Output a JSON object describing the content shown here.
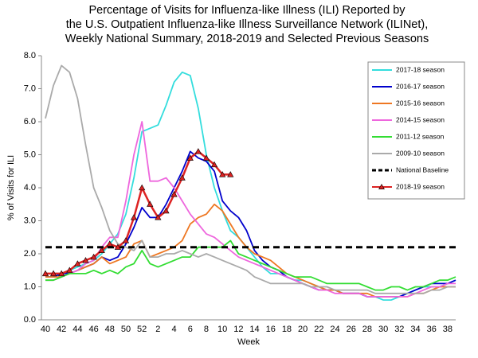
{
  "chart_data": {
    "type": "line",
    "title": [
      "Percentage of Visits for Influenza-like Illness (ILI) Reported by",
      "the U.S. Outpatient Influenza-like Illness Surveillance Network (ILINet),",
      "Weekly National Summary, 2018-2019 and Selected Previous Seasons"
    ],
    "x_label": "Week",
    "y_label": "% of Visits for ILI",
    "categories": [
      40,
      null,
      42,
      null,
      44,
      null,
      46,
      null,
      48,
      null,
      50,
      null,
      52,
      null,
      2,
      null,
      4,
      null,
      6,
      null,
      8,
      null,
      10,
      null,
      12,
      null,
      14,
      null,
      16,
      null,
      18,
      null,
      20,
      null,
      22,
      null,
      24,
      null,
      26,
      null,
      28,
      null,
      30,
      null,
      32,
      null,
      34,
      null,
      36,
      null,
      38,
      null
    ],
    "ylim": [
      0,
      8
    ],
    "yticks": [
      {
        "value": 0,
        "label": "0.0"
      },
      {
        "value": 1,
        "label": "1.0"
      },
      {
        "value": 2,
        "label": "2.0"
      },
      {
        "value": 3,
        "label": "3.0"
      },
      {
        "value": 4,
        "label": "4.0"
      },
      {
        "value": 5,
        "label": "5.0"
      },
      {
        "value": 6,
        "label": "6.0"
      },
      {
        "value": 7,
        "label": "7.0"
      },
      {
        "value": 8,
        "label": "8.0"
      }
    ],
    "legend": "top-right",
    "series": [
      {
        "name": "2017-18 season",
        "color": "#33dddd",
        "values": [
          1.3,
          1.3,
          1.4,
          1.5,
          1.6,
          1.7,
          1.8,
          2.0,
          2.3,
          2.6,
          3.2,
          4.3,
          5.7,
          5.8,
          5.9,
          6.5,
          7.2,
          7.5,
          7.4,
          6.4,
          5.0,
          4.0,
          3.3,
          2.7,
          2.5,
          2.2,
          1.9,
          1.6,
          1.4,
          1.4,
          1.3,
          1.2,
          1.2,
          1.1,
          1.0,
          0.9,
          0.9,
          0.8,
          0.8,
          0.8,
          0.7,
          0.7,
          0.6,
          0.6,
          0.7,
          0.8,
          0.9,
          1.0,
          1.0,
          1.0,
          1.1,
          1.2
        ]
      },
      {
        "name": "2016-17 season",
        "color": "#0000cc",
        "values": [
          1.3,
          1.3,
          1.4,
          1.4,
          1.5,
          1.6,
          1.7,
          1.9,
          1.8,
          1.9,
          2.3,
          2.8,
          3.4,
          3.1,
          3.1,
          3.5,
          4.0,
          4.5,
          5.1,
          4.9,
          4.8,
          4.5,
          3.6,
          3.3,
          3.1,
          2.7,
          2.1,
          1.8,
          1.6,
          1.5,
          1.3,
          1.2,
          1.1,
          1.0,
          0.9,
          0.9,
          0.9,
          0.8,
          0.8,
          0.8,
          0.7,
          0.7,
          0.7,
          0.7,
          0.7,
          0.8,
          0.9,
          1.0,
          1.1,
          1.1,
          1.1,
          1.2
        ]
      },
      {
        "name": "2015-16 season",
        "color": "#ee7722",
        "values": [
          1.3,
          1.3,
          1.3,
          1.4,
          1.5,
          1.6,
          1.7,
          1.9,
          1.7,
          1.8,
          1.9,
          2.3,
          2.4,
          1.9,
          2.0,
          2.1,
          2.2,
          2.4,
          2.9,
          3.1,
          3.2,
          3.5,
          3.3,
          2.9,
          2.5,
          2.2,
          2.0,
          1.9,
          1.8,
          1.6,
          1.4,
          1.3,
          1.2,
          1.1,
          1.0,
          0.9,
          0.9,
          0.8,
          0.8,
          0.8,
          0.8,
          0.7,
          0.7,
          0.7,
          0.7,
          0.7,
          0.8,
          0.8,
          0.9,
          1.0,
          1.0,
          1.0
        ]
      },
      {
        "name": "2014-15 season",
        "color": "#ee66dd",
        "values": [
          1.2,
          1.2,
          1.3,
          1.4,
          1.5,
          1.7,
          1.8,
          2.2,
          2.5,
          2.5,
          3.6,
          5.0,
          6.0,
          4.2,
          4.2,
          4.3,
          4.0,
          3.6,
          3.2,
          2.9,
          2.6,
          2.5,
          2.3,
          2.1,
          1.9,
          1.8,
          1.7,
          1.6,
          1.5,
          1.4,
          1.3,
          1.2,
          1.1,
          1.0,
          0.9,
          0.9,
          0.8,
          0.8,
          0.8,
          0.8,
          0.7,
          0.7,
          0.7,
          0.7,
          0.7,
          0.7,
          0.8,
          0.9,
          1.0,
          1.0,
          1.1,
          1.1
        ]
      },
      {
        "name": "2011-12 season",
        "color": "#33dd33",
        "values": [
          1.2,
          1.2,
          1.3,
          1.4,
          1.4,
          1.4,
          1.5,
          1.4,
          1.5,
          1.4,
          1.6,
          1.7,
          2.1,
          1.7,
          1.6,
          1.7,
          1.8,
          1.9,
          1.9,
          2.2,
          2.2,
          2.2,
          2.2,
          2.4,
          2.0,
          1.9,
          1.8,
          1.7,
          1.6,
          1.5,
          1.4,
          1.3,
          1.3,
          1.3,
          1.2,
          1.1,
          1.1,
          1.1,
          1.1,
          1.1,
          1.0,
          0.9,
          0.9,
          1.0,
          1.0,
          0.9,
          1.0,
          1.0,
          1.1,
          1.2,
          1.2,
          1.3
        ]
      },
      {
        "name": "2009-10 season",
        "color": "#aaaaaa",
        "values": [
          6.1,
          7.1,
          7.7,
          7.5,
          6.7,
          5.3,
          4.0,
          3.4,
          2.7,
          2.3,
          2.2,
          2.1,
          2.4,
          1.9,
          1.9,
          2.0,
          2.0,
          2.1,
          2.0,
          1.9,
          2.0,
          1.9,
          1.8,
          1.7,
          1.6,
          1.5,
          1.3,
          1.2,
          1.1,
          1.1,
          1.1,
          1.1,
          1.1,
          1.0,
          1.0,
          1.0,
          0.9,
          0.9,
          0.9,
          0.9,
          0.9,
          0.8,
          0.8,
          0.8,
          0.8,
          0.8,
          0.8,
          0.8,
          0.9,
          0.9,
          1.0,
          1.0
        ]
      },
      {
        "name": "National Baseline",
        "color": "#000000",
        "value": 2.2,
        "style": "dashed"
      },
      {
        "name": "2018-19 season",
        "color": "#dd2222",
        "marker": "triangle",
        "values": [
          1.4,
          1.4,
          1.4,
          1.5,
          1.7,
          1.8,
          1.9,
          2.1,
          2.3,
          2.2,
          2.4,
          3.1,
          4.0,
          3.5,
          3.1,
          3.3,
          3.8,
          4.3,
          4.9,
          5.1,
          4.9,
          4.7,
          4.4,
          4.4,
          null,
          null,
          null,
          null,
          null,
          null,
          null,
          null,
          null,
          null,
          null,
          null,
          null,
          null,
          null,
          null,
          null,
          null,
          null,
          null,
          null,
          null,
          null,
          null,
          null,
          null,
          null,
          null
        ]
      }
    ]
  }
}
